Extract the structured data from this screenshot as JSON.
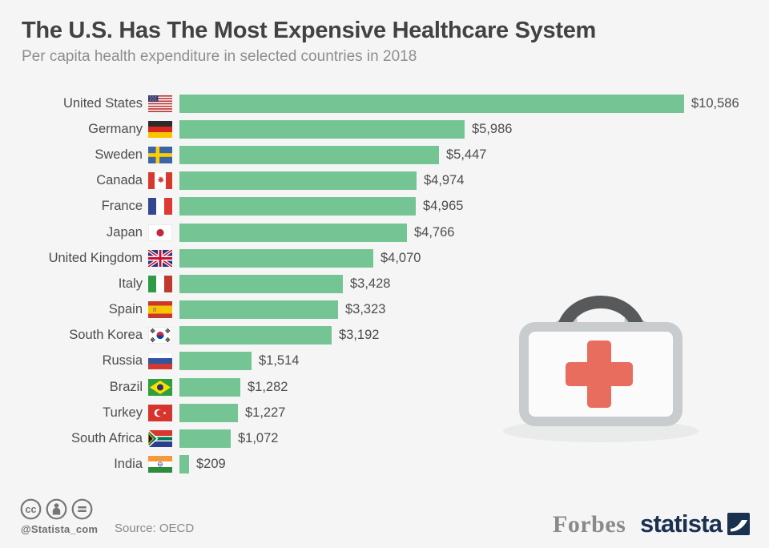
{
  "header": {
    "title": "The U.S. Has The Most Expensive Healthcare System",
    "subtitle": "Per capita health expenditure in selected countries in 2018"
  },
  "chart_data": {
    "type": "bar",
    "orientation": "horizontal",
    "title": "The U.S. Has The Most Expensive Healthcare System",
    "subtitle": "Per capita health expenditure in selected countries in 2018",
    "xlabel": "",
    "ylabel": "",
    "unit": "USD per capita",
    "year": "2018",
    "xlim": [
      0,
      10586
    ],
    "grid": false,
    "legend": false,
    "bar_color": "#74c593",
    "categories": [
      "United States",
      "Germany",
      "Sweden",
      "Canada",
      "France",
      "Japan",
      "United Kingdom",
      "Italy",
      "Spain",
      "South Korea",
      "Russia",
      "Brazil",
      "Turkey",
      "South Africa",
      "India"
    ],
    "values": [
      10586,
      5986,
      5447,
      4974,
      4965,
      4766,
      4070,
      3428,
      3323,
      3192,
      1514,
      1282,
      1227,
      1072,
      209
    ],
    "value_labels": [
      "$10,586",
      "$5,986",
      "$5,447",
      "$4,974",
      "$4,965",
      "$4,766",
      "$4,070",
      "$3,428",
      "$3,323",
      "$3,192",
      "$1,514",
      "$1,282",
      "$1,227",
      "$1,072",
      "$209"
    ],
    "flags": [
      "us",
      "de",
      "se",
      "ca",
      "fr",
      "jp",
      "gb",
      "it",
      "es",
      "kr",
      "ru",
      "br",
      "tr",
      "za",
      "in"
    ]
  },
  "illustration": {
    "name": "first-aid-kit",
    "cross_color": "#e96d5e",
    "case_color": "#c9ccce",
    "handle_color": "#58595b",
    "shadow_color": "#e9eaea"
  },
  "footer": {
    "license_icons": [
      "cc-icon",
      "attribution-icon",
      "equality-icon"
    ],
    "handle": "@Statista_com",
    "source": "Source: OECD",
    "partner_logo": "Forbes",
    "brand_logo": "statista",
    "brand_color": "#1b3150"
  }
}
